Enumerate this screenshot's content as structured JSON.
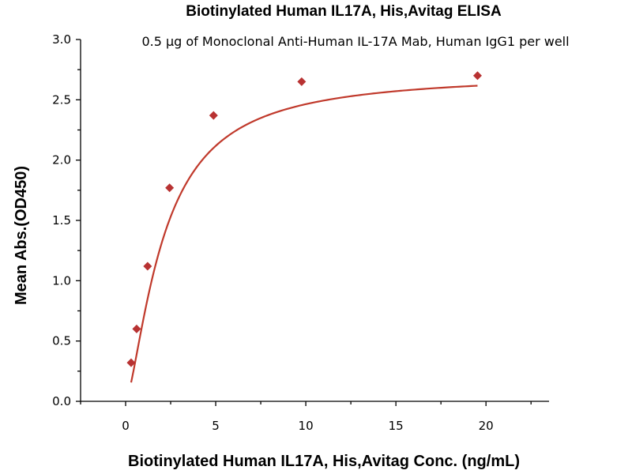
{
  "chart_data": {
    "type": "scatter",
    "title": "Biotinylated Human IL17A, His,Avitag ELISA",
    "subtitle": "0.5 µg of Monoclonal Anti-Human IL-17A Mab, Human IgG1 per well",
    "xlabel": "Biotinylated Human IL17A, His,Avitag Conc. (ng/mL)",
    "ylabel": "Mean Abs.(OD450)",
    "xlim": [
      -2.5,
      23.5
    ],
    "ylim": [
      0,
      3.0
    ],
    "x_ticks": [
      0,
      5,
      10,
      15,
      20
    ],
    "x_tick_labels": [
      "0",
      "5",
      "10",
      "15",
      "20"
    ],
    "y_ticks": [
      0,
      0.5,
      1.0,
      1.5,
      2.0,
      2.5,
      3.0
    ],
    "y_tick_labels": [
      "0.0",
      "0.5",
      "1.0",
      "1.5",
      "2.0",
      "2.5",
      "3.0"
    ],
    "grid": false,
    "legend": "none",
    "marker_color": "#b83232",
    "line_color": "#c0392b",
    "series": [
      {
        "x": [
          0.305,
          0.61,
          1.22,
          2.44,
          4.88,
          9.77,
          19.53
        ],
        "y": [
          0.32,
          0.6,
          1.12,
          1.77,
          2.37,
          2.65,
          2.7
        ]
      }
    ],
    "fit_curve": "sigmoidal fit through points"
  }
}
